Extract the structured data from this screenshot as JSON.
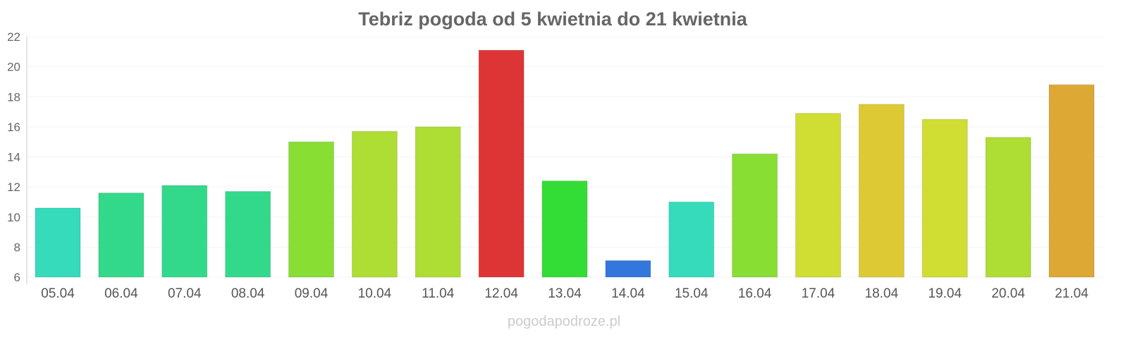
{
  "chart_data": {
    "type": "bar",
    "title": "Tebriz pogoda od 5 kwietnia do 21 kwietnia",
    "xlabel": "",
    "ylabel": "",
    "ylim": [
      6,
      22
    ],
    "yticks": [
      6,
      8,
      10,
      12,
      14,
      16,
      18,
      20,
      22
    ],
    "grid": true,
    "categories": [
      "05.04",
      "06.04",
      "07.04",
      "08.04",
      "09.04",
      "10.04",
      "11.04",
      "12.04",
      "13.04",
      "14.04",
      "15.04",
      "16.04",
      "17.04",
      "18.04",
      "19.04",
      "20.04",
      "21.04"
    ],
    "values": [
      10.6,
      11.6,
      12.1,
      11.7,
      15.0,
      15.7,
      16.0,
      21.1,
      12.4,
      7.1,
      11.0,
      14.2,
      16.9,
      17.5,
      16.5,
      15.3,
      18.8
    ],
    "colors": [
      "#35dbbb",
      "#33d98a",
      "#33d98a",
      "#33d98a",
      "#88de33",
      "#aedd33",
      "#aedd33",
      "#dd3535",
      "#33dd35",
      "#3377dd",
      "#35dbbb",
      "#88de33",
      "#d0dd33",
      "#ddc933",
      "#d0dd33",
      "#aedd33",
      "#dda833"
    ]
  },
  "watermark": "pogodapodroze.pl"
}
